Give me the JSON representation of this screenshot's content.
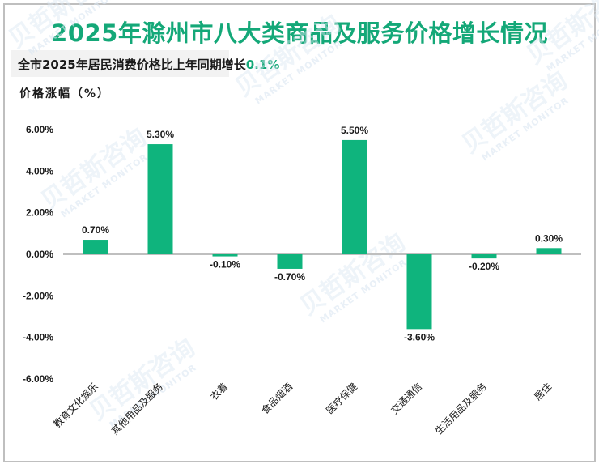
{
  "header": {
    "title": "2025年滁州市八大类商品及服务价格增长情况",
    "subtitle_prefix": "全市2025年居民消费价格比上年同期增长",
    "subtitle_value": "0.1%",
    "y_axis_label": "价格涨幅（%）"
  },
  "watermark": {
    "cn": "贝哲斯咨询",
    "en": "MARKET MONITOR"
  },
  "colors": {
    "bar": "#0fb47d",
    "title": "#14a878",
    "axis": "#bfbfbf",
    "border": "#bfbfbf"
  },
  "chart_data": {
    "type": "bar",
    "title": "2025年滁州市八大类商品及服务价格增长情况",
    "subtitle": "全市2025年居民消费价格比上年同期增长0.1%",
    "xlabel": "",
    "ylabel": "价格涨幅（%）",
    "categories": [
      "教育文化娱乐",
      "其他用品及服务",
      "衣着",
      "食品烟酒",
      "医疗保健",
      "交通通信",
      "生活用品及服务",
      "居住"
    ],
    "values": [
      0.7,
      5.3,
      -0.1,
      -0.7,
      5.5,
      -3.6,
      -0.2,
      0.3
    ],
    "value_labels": [
      "0.70%",
      "5.30%",
      "-0.10%",
      "-0.70%",
      "5.50%",
      "-3.60%",
      "-0.20%",
      "0.30%"
    ],
    "ylim": [
      -6,
      6
    ],
    "yticks": [
      6,
      4,
      2,
      0,
      -2,
      -4,
      -6
    ],
    "ytick_labels": [
      "6.00%",
      "4.00%",
      "2.00%",
      "0.00%",
      "-2.00%",
      "-4.00%",
      "-6.00%"
    ],
    "grid": false,
    "legend": null
  }
}
